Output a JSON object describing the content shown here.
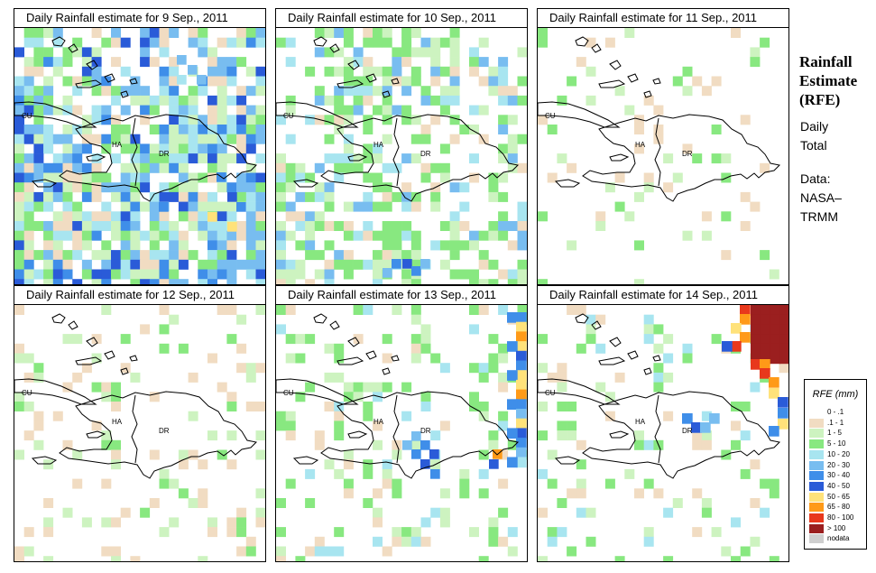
{
  "panels": [
    {
      "title": "Daily Rainfall estimate for  9 Sep., 2011"
    },
    {
      "title": "Daily Rainfall estimate for  10 Sep., 2011"
    },
    {
      "title": "Daily Rainfall estimate for  11 Sep., 2011"
    },
    {
      "title": "Daily Rainfall estimate for  12 Sep., 2011"
    },
    {
      "title": "Daily Rainfall estimate for  13 Sep., 2011"
    },
    {
      "title": "Daily Rainfall estimate for  14 Sep., 2011"
    }
  ],
  "map_labels": {
    "cu": "CU",
    "ha": "HA",
    "dr": "DR"
  },
  "side": {
    "title1": "Rainfall",
    "title2": "Estimate",
    "title3": "(RFE)",
    "daily1": "Daily",
    "daily2": "Total",
    "data1": "Data:",
    "data2": "NASA–",
    "data3": "TRMM"
  },
  "legend": {
    "title": "RFE (mm)",
    "items": [
      {
        "label": "0 - .1",
        "color": "#ffffff"
      },
      {
        "label": ".1 - 1",
        "color": "#f1dcc2"
      },
      {
        "label": "1 - 5",
        "color": "#cdf3c0"
      },
      {
        "label": "5 - 10",
        "color": "#88e880"
      },
      {
        "label": "10 - 20",
        "color": "#a8e5f0"
      },
      {
        "label": "20 - 30",
        "color": "#78bdf0"
      },
      {
        "label": "30 - 40",
        "color": "#3f8ee9"
      },
      {
        "label": "40 - 50",
        "color": "#2a5bd8"
      },
      {
        "label": "50 - 65",
        "color": "#ffe27a"
      },
      {
        "label": "65 - 80",
        "color": "#ff9a18"
      },
      {
        "label": "80 - 100",
        "color": "#e8381c"
      },
      {
        "label": "> 100",
        "color": "#9b1f1f"
      },
      {
        "label": "nodata",
        "color": "#cfcfcf"
      }
    ]
  }
}
